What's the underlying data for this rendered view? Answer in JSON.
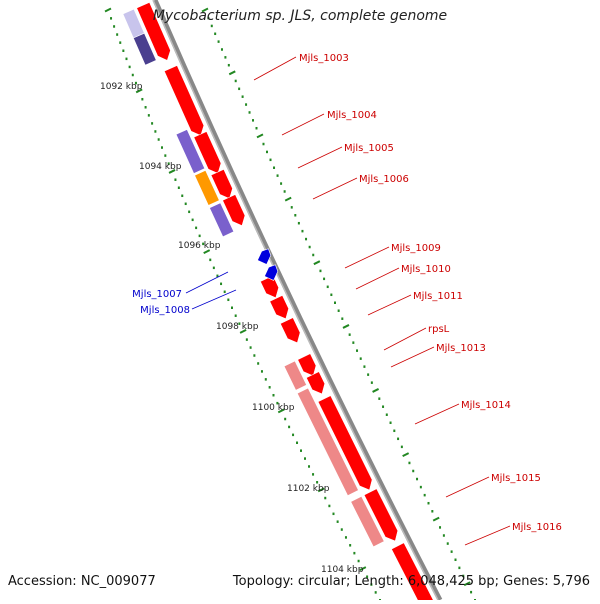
{
  "title": "Mycobacterium sp. JLS, complete genome",
  "footer": {
    "accession": "Accession: NC_009077",
    "summary": "Topology: circular; Length: 6,048,425 bp; Genes: 5,796"
  },
  "colors": {
    "backbone": "#888888",
    "cds": "#ff0000",
    "cds_light": "#ee8888",
    "purple": "#7a60cc",
    "dark_purple": "#4a3f8f",
    "orange": "#ff9900",
    "blue_gene": "#0000dd",
    "tick": "#228822",
    "label_red": "#cc0000",
    "label_blue": "#0000cc"
  },
  "scale_labels": [
    "1092 kbp",
    "1094 kbp",
    "1096 kbp",
    "1098 kbp",
    "1100 kbp",
    "1102 kbp",
    "1104 kbp"
  ],
  "gene_labels": {
    "right": [
      "Mjls_1003",
      "Mjls_1004",
      "Mjls_1005",
      "Mjls_1006",
      "Mjls_1009",
      "Mjls_1010",
      "Mjls_1011",
      "rpsL",
      "Mjls_1013",
      "Mjls_1014",
      "Mjls_1015",
      "Mjls_1016"
    ],
    "left": [
      "Mjls_1007",
      "Mjls_1008"
    ]
  }
}
